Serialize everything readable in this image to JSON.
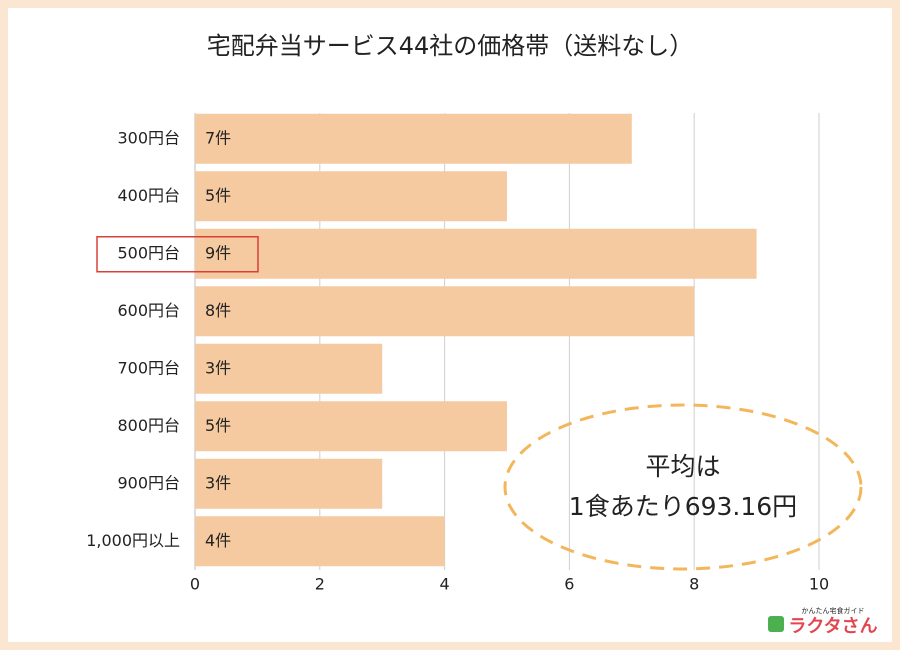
{
  "chart_data": {
    "type": "bar",
    "orientation": "horizontal",
    "title": "宅配弁当サービス44社の価格帯（送料なし）",
    "categories": [
      "300円台",
      "400円台",
      "500円台",
      "600円台",
      "700円台",
      "800円台",
      "900円台",
      "1,000円以上"
    ],
    "values": [
      7,
      5,
      9,
      8,
      3,
      5,
      3,
      4
    ],
    "value_labels": [
      "7件",
      "5件",
      "9件",
      "8件",
      "3件",
      "5件",
      "3件",
      "4件"
    ],
    "color": "#f6caa0",
    "xlim": [
      0,
      10
    ],
    "xticks": [
      0,
      2,
      4,
      6,
      8,
      10
    ],
    "grid": true,
    "highlight": "500円台",
    "annotation": [
      "平均は",
      "1食あたり693.16円"
    ],
    "logo": {
      "tagline": "かんたん宅食ガイド",
      "name": "ラクタさん"
    }
  }
}
